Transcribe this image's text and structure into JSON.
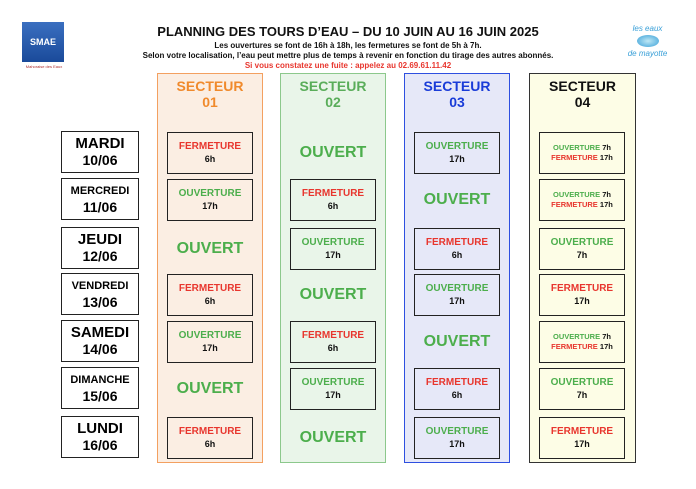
{
  "logos": {
    "smae": "SMAE",
    "smae_sub": "Mahoraise des Eaux",
    "eaux_top": "les eaux",
    "eaux_bottom": "de mayotte"
  },
  "header": {
    "title": "PLANNING DES TOURS D’EAU – DU 10 JUIN AU 16 JUIN 2025",
    "line1": "Les ouvertures se font de 16h à 18h, les fermetures se font de 5h à 7h.",
    "line2": "Selon votre localisation, l’eau peut mettre plus de temps à revenir en fonction du tirage des autres abonnés.",
    "line3": "Si vous constatez une fuite : appelez au 02.69.61.11.42"
  },
  "days": [
    {
      "name": "MARDI",
      "date": "10/06"
    },
    {
      "name": "MERCREDI",
      "date": "11/06"
    },
    {
      "name": "JEUDI",
      "date": "12/06"
    },
    {
      "name": "VENDREDI",
      "date": "13/06"
    },
    {
      "name": "SAMEDI",
      "date": "14/06"
    },
    {
      "name": "DIMANCHE",
      "date": "15/06"
    },
    {
      "name": "LUNDI",
      "date": "16/06"
    }
  ],
  "labels": {
    "ouvert": "OUVERT",
    "ouverture": "OUVERTURE",
    "fermeture": "FERMETURE"
  },
  "sectors": [
    {
      "label": "SECTEUR",
      "num": "01",
      "color": "#f08a2c",
      "bg": "#fbeee3",
      "border": "#f3a060",
      "cells": [
        {
          "t": "F",
          "h": "6h"
        },
        {
          "t": "O",
          "h": "17h"
        },
        {
          "t": "OUVERT"
        },
        {
          "t": "F",
          "h": "6h"
        },
        {
          "t": "O",
          "h": "17h"
        },
        {
          "t": "OUVERT"
        },
        {
          "t": "F",
          "h": "6h"
        }
      ]
    },
    {
      "label": "SECTEUR",
      "num": "02",
      "color": "#5aad5a",
      "bg": "#e9f5e9",
      "border": "#8cc88c",
      "cells": [
        {
          "t": "OUVERT"
        },
        {
          "t": "F",
          "h": "6h"
        },
        {
          "t": "O",
          "h": "17h"
        },
        {
          "t": "OUVERT"
        },
        {
          "t": "F",
          "h": "6h"
        },
        {
          "t": "O",
          "h": "17h"
        },
        {
          "t": "OUVERT"
        }
      ]
    },
    {
      "label": "SECTEUR",
      "num": "03",
      "color": "#1a3cd8",
      "bg": "#e6e8f8",
      "border": "#2e4fe0",
      "cells": [
        {
          "t": "O",
          "h": "17h"
        },
        {
          "t": "OUVERT"
        },
        {
          "t": "F",
          "h": "6h"
        },
        {
          "t": "O",
          "h": "17h"
        },
        {
          "t": "OUVERT"
        },
        {
          "t": "F",
          "h": "6h"
        },
        {
          "t": "O",
          "h": "17h"
        }
      ]
    },
    {
      "label": "SECTEUR",
      "num": "04",
      "color": "#111111",
      "bg": "#fdfde6",
      "border": "#333333",
      "cells": [
        {
          "t": "C",
          "o": "7h",
          "f": "17h"
        },
        {
          "t": "C",
          "o": "7h",
          "f": "17h"
        },
        {
          "t": "O",
          "h": "7h"
        },
        {
          "t": "F",
          "h": "17h"
        },
        {
          "t": "C",
          "o": "7h",
          "f": "17h"
        },
        {
          "t": "O",
          "h": "7h"
        },
        {
          "t": "F",
          "h": "17h"
        }
      ]
    }
  ]
}
